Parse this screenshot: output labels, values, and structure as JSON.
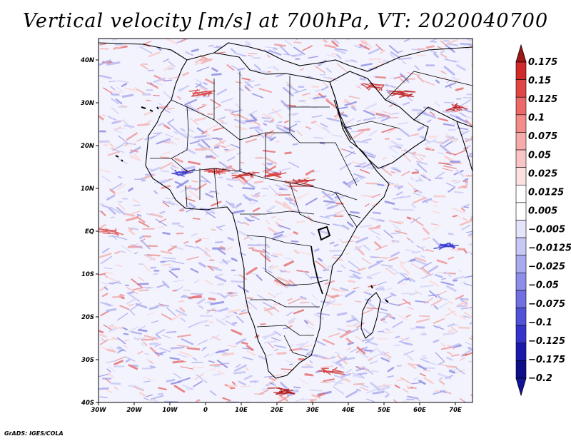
{
  "title": "Vertical velocity [m/s] at 700hPa, VT: 2020040700",
  "footer": "GrADS: IGES/COLA",
  "map": {
    "lon_range": [
      -30,
      75
    ],
    "lat_range": [
      -40,
      45
    ],
    "lon_ticks": [
      "30W",
      "20W",
      "10W",
      "0",
      "10E",
      "20E",
      "30E",
      "40E",
      "50E",
      "60E",
      "70E"
    ],
    "lat_ticks": [
      "40N",
      "30N",
      "20N",
      "10N",
      "EQ",
      "10S",
      "20S",
      "30S",
      "40S"
    ]
  },
  "colorbar": {
    "labels": [
      "0.175",
      "0.15",
      "0.125",
      "0.1",
      "0.075",
      "0.05",
      "0.025",
      "0.0125",
      "0.005",
      "−0.005",
      "−0.0125",
      "−0.025",
      "−0.05",
      "−0.075",
      "−0.1",
      "−0.125",
      "−0.175",
      "−0.2"
    ],
    "colors": [
      "#b01818",
      "#d02a2a",
      "#e24545",
      "#ee6a6a",
      "#f48c8c",
      "#f7aaaa",
      "#fac5c5",
      "#fde0e0",
      "#ffffff",
      "#ffffff",
      "#e4e4fc",
      "#c8c8f6",
      "#aaaaf0",
      "#8e8eea",
      "#7070e2",
      "#5252d8",
      "#3434cc",
      "#1a1aa8",
      "#0e0e8a"
    ],
    "arrow_colors": {
      "top": "#a01515",
      "bottom": "#12129a"
    }
  }
}
